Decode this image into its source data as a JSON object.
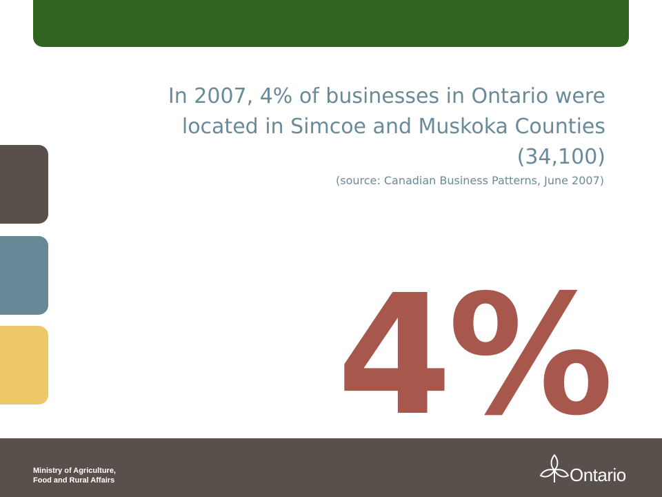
{
  "headline": {
    "lines": [
      "In 2007, 4% of businesses in Ontario were",
      "located in Simcoe and Muskoka Counties",
      "(34,100)"
    ]
  },
  "source": "(source: Canadian Business Patterns, June 2007)",
  "big_number": "4%",
  "footer": {
    "ministry": [
      "Ministry of Agriculture,",
      "Food and Rural Affairs"
    ],
    "logo_text": "Ontario"
  }
}
